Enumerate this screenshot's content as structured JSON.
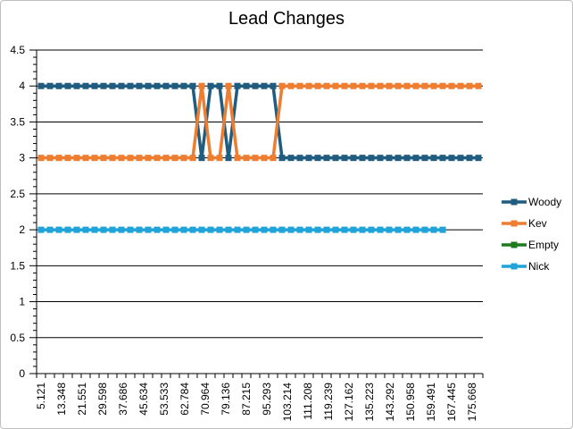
{
  "chart_data": {
    "type": "line",
    "title": "Lead Changes",
    "xlabel": "",
    "ylabel": "",
    "ylim": [
      0,
      4.5
    ],
    "yticks": [
      0,
      0.5,
      1,
      1.5,
      2,
      2.5,
      3,
      3.5,
      4,
      4.5
    ],
    "ytick_labels": [
      "0",
      "0.5",
      "1",
      "1.5",
      "2",
      "2.5",
      "3",
      "3.5",
      "4",
      "4.5"
    ],
    "x_labels": [
      "5.121",
      "13.348",
      "21.551",
      "29.598",
      "37.686",
      "45.634",
      "53.533",
      "62.784",
      "70.964",
      "79.136",
      "87.215",
      "95.293",
      "103.214",
      "111.208",
      "119.239",
      "127.162",
      "135.223",
      "143.292",
      "150.958",
      "159.491",
      "167.445",
      "175.668"
    ],
    "grid": true,
    "legend": "right",
    "series": [
      {
        "name": "Woody",
        "color": "#1f5c7f",
        "values": [
          4,
          4,
          4,
          4,
          4,
          4,
          4,
          4,
          4,
          4,
          4,
          4,
          4,
          4,
          4,
          4,
          4,
          4,
          3,
          4,
          4,
          3,
          4,
          4,
          4,
          4,
          4,
          3,
          3,
          3,
          3,
          3,
          3,
          3,
          3,
          3,
          3,
          3,
          3,
          3,
          3,
          3,
          3,
          3,
          3,
          3,
          3,
          3,
          3,
          3
        ]
      },
      {
        "name": "Kev",
        "color": "#ed7d31",
        "values": [
          3,
          3,
          3,
          3,
          3,
          3,
          3,
          3,
          3,
          3,
          3,
          3,
          3,
          3,
          3,
          3,
          3,
          3,
          4,
          3,
          3,
          4,
          3,
          3,
          3,
          3,
          3,
          4,
          4,
          4,
          4,
          4,
          4,
          4,
          4,
          4,
          4,
          4,
          4,
          4,
          4,
          4,
          4,
          4,
          4,
          4,
          4,
          4,
          4,
          4
        ]
      },
      {
        "name": "Empty",
        "color": "#1e7a1e",
        "values": []
      },
      {
        "name": "Nick",
        "color": "#1fa3d8",
        "values": [
          2,
          2,
          2,
          2,
          2,
          2,
          2,
          2,
          2,
          2,
          2,
          2,
          2,
          2,
          2,
          2,
          2,
          2,
          2,
          2,
          2,
          2,
          2,
          2,
          2,
          2,
          2,
          2,
          2,
          2,
          2,
          2,
          2,
          2,
          2,
          2,
          2,
          2,
          2,
          2,
          2,
          2,
          2,
          2,
          2,
          2
        ]
      }
    ]
  }
}
